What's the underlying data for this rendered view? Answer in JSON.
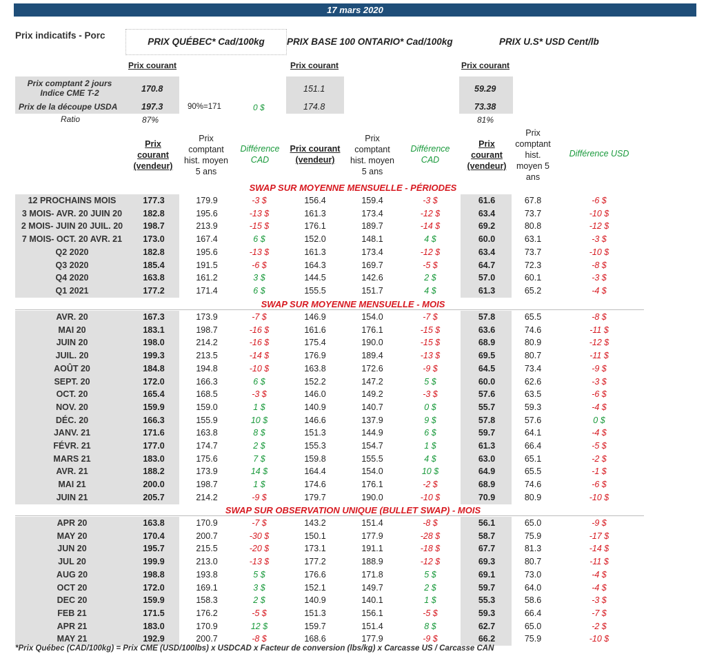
{
  "date": "17 mars 2020",
  "title": "Prix indicatifs - Porc",
  "headers": {
    "quebec": "PRIX QUÉBEC* Cad/100kg",
    "ontario": "PRIX BASE 100 ONTARIO* Cad/100kg",
    "us": "PRIX U.S* USD Cent/lb"
  },
  "prix_courant_label": "Prix courant",
  "summary": {
    "cash_label": "Prix comptant 2 jours Indice CME T-2",
    "cash_label_l1": "Prix comptant 2 jours",
    "cash_label_l2": "Indice CME T-2",
    "cutout_label": "Prix de la découpe USDA",
    "ratio_label": "Ratio",
    "qc_cash": "170.8",
    "qc_cutout": "197.3",
    "pct_note": "90%=171",
    "diff_note": "0 $",
    "on_cash": "151.1",
    "on_cutout": "174.8",
    "us_cash": "59.29",
    "us_cutout": "73.38",
    "ratio_qc": "87%",
    "ratio_us": "81%"
  },
  "columns": {
    "prix_courant_vendeur_l1": "Prix",
    "prix_courant_vendeur_l2": "courant",
    "prix_courant_vendeur_l3": "(vendeur)",
    "hist_qc_l1": "Prix",
    "hist_qc_l2": "comptant",
    "hist_qc_l3": "hist. moyen",
    "hist_qc_l4": "5 ans",
    "diff_cad_l1": "Différence",
    "diff_cad_l2": "CAD",
    "on_courant_l1": "Prix courant",
    "on_courant_l2": "(vendeur)",
    "hist_on_l1": "Prix",
    "hist_on_l2": "comptant",
    "hist_on_l3": "hist. moyen",
    "hist_on_l4": "5 ans",
    "us_courant_l1": "Prix",
    "us_courant_l2": "courant",
    "us_courant_l3": "(vendeur)",
    "hist_us_l1": "Prix",
    "hist_us_l2": "comptant",
    "hist_us_l3": "hist.",
    "hist_us_l4": "moyen 5",
    "hist_us_l5": "ans",
    "diff_usd": "Différence USD"
  },
  "sections": [
    {
      "title": "SWAP SUR MOYENNE MENSUELLE - PÉRIODES",
      "rows": [
        [
          "12 PROCHAINS MOIS",
          "177.3",
          "179.9",
          "-3 $",
          "156.4",
          "159.4",
          "-3 $",
          "61.6",
          "67.8",
          "-6 $"
        ],
        [
          "3 MOIS- AVR. 20 JUIN 20",
          "182.8",
          "195.6",
          "-13 $",
          "161.3",
          "173.4",
          "-12 $",
          "63.4",
          "73.7",
          "-10 $"
        ],
        [
          "2 MOIS- JUIN 20 JUIL. 20",
          "198.7",
          "213.9",
          "-15 $",
          "176.1",
          "189.7",
          "-14 $",
          "69.2",
          "80.8",
          "-12 $"
        ],
        [
          "7 MOIS- OCT. 20 AVR. 21",
          "173.0",
          "167.4",
          "6 $",
          "152.0",
          "148.1",
          "4 $",
          "60.0",
          "63.1",
          "-3 $"
        ],
        [
          "Q2 2020",
          "182.8",
          "195.6",
          "-13 $",
          "161.3",
          "173.4",
          "-12 $",
          "63.4",
          "73.7",
          "-10 $"
        ],
        [
          "Q3 2020",
          "185.4",
          "191.5",
          "-6 $",
          "164.3",
          "169.7",
          "-5 $",
          "64.7",
          "72.3",
          "-8 $"
        ],
        [
          "Q4 2020",
          "163.8",
          "161.2",
          "3 $",
          "144.5",
          "142.6",
          "2 $",
          "57.0",
          "60.1",
          "-3 $"
        ],
        [
          "Q1 2021",
          "177.2",
          "171.4",
          "6 $",
          "155.5",
          "151.7",
          "4 $",
          "61.3",
          "65.2",
          "-4 $"
        ]
      ]
    },
    {
      "title": "SWAP SUR MOYENNE MENSUELLE - MOIS",
      "rows": [
        [
          "AVR. 20",
          "167.3",
          "173.9",
          "-7 $",
          "146.9",
          "154.0",
          "-7 $",
          "57.8",
          "65.5",
          "-8 $"
        ],
        [
          "MAI 20",
          "183.1",
          "198.7",
          "-16 $",
          "161.6",
          "176.1",
          "-15 $",
          "63.6",
          "74.6",
          "-11 $"
        ],
        [
          "JUIN 20",
          "198.0",
          "214.2",
          "-16 $",
          "175.4",
          "190.0",
          "-15 $",
          "68.9",
          "80.9",
          "-12 $"
        ],
        [
          "JUIL. 20",
          "199.3",
          "213.5",
          "-14 $",
          "176.9",
          "189.4",
          "-13 $",
          "69.5",
          "80.7",
          "-11 $"
        ],
        [
          "AOÛT 20",
          "184.8",
          "194.8",
          "-10 $",
          "163.8",
          "172.6",
          "-9 $",
          "64.5",
          "73.4",
          "-9 $"
        ],
        [
          "SEPT. 20",
          "172.0",
          "166.3",
          "6 $",
          "152.2",
          "147.2",
          "5 $",
          "60.0",
          "62.6",
          "-3 $"
        ],
        [
          "OCT. 20",
          "165.4",
          "168.5",
          "-3 $",
          "146.0",
          "149.2",
          "-3 $",
          "57.6",
          "63.5",
          "-6 $"
        ],
        [
          "NOV. 20",
          "159.9",
          "159.0",
          "1 $",
          "140.9",
          "140.7",
          "0 $",
          "55.7",
          "59.3",
          "-4 $"
        ],
        [
          "DÉC. 20",
          "166.3",
          "155.9",
          "10 $",
          "146.6",
          "137.9",
          "9 $",
          "57.8",
          "57.6",
          "0 $"
        ],
        [
          "JANV. 21",
          "171.6",
          "163.8",
          "8 $",
          "151.3",
          "144.9",
          "6 $",
          "59.7",
          "64.1",
          "-4 $"
        ],
        [
          "FÉVR. 21",
          "177.0",
          "174.7",
          "2 $",
          "155.3",
          "154.7",
          "1 $",
          "61.3",
          "66.4",
          "-5 $"
        ],
        [
          "MARS 21",
          "183.0",
          "175.6",
          "7 $",
          "159.8",
          "155.5",
          "4 $",
          "63.0",
          "65.1",
          "-2 $"
        ],
        [
          "AVR. 21",
          "188.2",
          "173.9",
          "14 $",
          "164.4",
          "154.0",
          "10 $",
          "64.9",
          "65.5",
          "-1 $"
        ],
        [
          "MAI 21",
          "200.0",
          "198.7",
          "1 $",
          "174.6",
          "176.1",
          "-2 $",
          "68.9",
          "74.6",
          "-6 $"
        ],
        [
          "JUIN 21",
          "205.7",
          "214.2",
          "-9 $",
          "179.7",
          "190.0",
          "-10 $",
          "70.9",
          "80.9",
          "-10 $"
        ]
      ]
    },
    {
      "title": "SWAP SUR OBSERVATION UNIQUE (BULLET SWAP) - MOIS",
      "rows": [
        [
          "APR 20",
          "163.8",
          "170.9",
          "-7 $",
          "143.2",
          "151.4",
          "-8 $",
          "56.1",
          "65.0",
          "-9 $"
        ],
        [
          "MAY 20",
          "170.4",
          "200.7",
          "-30 $",
          "150.1",
          "177.9",
          "-28 $",
          "58.7",
          "75.9",
          "-17 $"
        ],
        [
          "JUN 20",
          "195.7",
          "215.5",
          "-20 $",
          "173.1",
          "191.1",
          "-18 $",
          "67.7",
          "81.3",
          "-14 $"
        ],
        [
          "JUL 20",
          "199.9",
          "213.0",
          "-13 $",
          "177.2",
          "188.9",
          "-12 $",
          "69.3",
          "80.7",
          "-11 $"
        ],
        [
          "AUG 20",
          "198.8",
          "193.8",
          "5 $",
          "176.6",
          "171.8",
          "5 $",
          "69.1",
          "73.0",
          "-4 $"
        ],
        [
          "OCT 20",
          "172.0",
          "169.1",
          "3 $",
          "152.1",
          "149.7",
          "2 $",
          "59.7",
          "64.0",
          "-4 $"
        ],
        [
          "DEC 20",
          "159.9",
          "158.3",
          "2 $",
          "140.9",
          "140.1",
          "1 $",
          "55.3",
          "58.6",
          "-3 $"
        ],
        [
          "FEB 21",
          "171.5",
          "176.2",
          "-5 $",
          "151.3",
          "156.1",
          "-5 $",
          "59.3",
          "66.4",
          "-7 $"
        ],
        [
          "APR 21",
          "183.0",
          "170.9",
          "12 $",
          "159.7",
          "151.4",
          "8 $",
          "62.7",
          "65.0",
          "-2 $"
        ],
        [
          "MAY 21",
          "192.9",
          "200.7",
          "-8 $",
          "168.6",
          "177.9",
          "-9 $",
          "66.2",
          "75.9",
          "-10 $"
        ]
      ]
    }
  ],
  "footnote": "*Prix Québec (CAD/100kg) = Prix CME (USD/100lbs) x USDCAD x Facteur de conversion (lbs/kg) x Carcasse US / Carcasse CAN",
  "colors": {
    "header_bar": "#1f4e79",
    "negative": "#d71920",
    "positive": "#1a9a3c",
    "shade": "#dedede"
  }
}
